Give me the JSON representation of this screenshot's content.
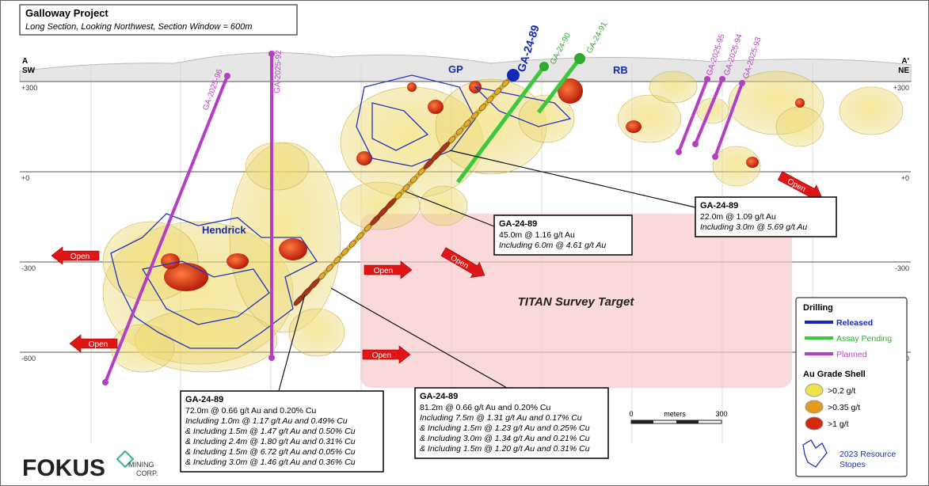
{
  "header": {
    "title": "Galloway Project",
    "subtitle": "Long Section, Looking Northwest, Section Window = 600m"
  },
  "section_ends": {
    "left": {
      "point": "A",
      "direction": "SW"
    },
    "right": {
      "point": "A'",
      "direction": "NE"
    }
  },
  "elevations": [
    "+300",
    "+0",
    "-300",
    "-600"
  ],
  "zones": [
    "GP",
    "RB",
    "Hendrick"
  ],
  "drill_holes": [
    "GA-2025-96",
    "GA-2025-92",
    "GA-24-89",
    "GA-24-90",
    "GA-24-91",
    "GA-2025-95",
    "GA-2025-94",
    "GA-2025-93"
  ],
  "open_arrows": [
    "Open",
    "Open",
    "Open",
    "Open",
    "Open",
    "Open"
  ],
  "target": "TITAN Survey Target",
  "callouts": [
    {
      "title": "GA-24-89",
      "lines": [
        "22.0m @ 1.09 g/t Au",
        "Including 3.0m @ 5.69 g/t Au"
      ]
    },
    {
      "title": "GA-24-89",
      "lines": [
        "45.0m @ 1.16 g/t Au",
        "Including 6.0m @ 4.61 g/t Au"
      ]
    },
    {
      "title": "GA-24-89",
      "lines": [
        "72.0m @ 0.66 g/t Au and 0.20% Cu",
        "Including 1.0m @ 1.17 g/t Au and 0.49% Cu",
        "& Including 1.5m @ 1.47 g/t Au and 0.50% Cu",
        "& Including 2.4m @ 1.80 g/t Au and 0.31% Cu",
        "& Including 1.5m @ 6.72 g/t Au and 0.05% Cu",
        "& Including 3.0m @ 1.46 g/t Au and 0.36% Cu"
      ]
    },
    {
      "title": "GA-24-89",
      "lines": [
        "81.2m @ 0.66 g/t Au and 0.20% Cu",
        "Including 7.5m @ 1.31 g/t Au and 0.17% Cu",
        "& Including 1.5m @ 1.23 g/t Au and 0.25% Cu",
        "& Including 3.0m @ 1.34 g/t Au and 0.21% Cu",
        "& Including 1.5m @ 1.20 g/t Au and 0.31% Cu"
      ]
    }
  ],
  "legend": {
    "drilling": {
      "heading": "Drilling",
      "items": [
        "Released",
        "Assay Pending",
        "Planned"
      ]
    },
    "grade_shell": {
      "heading": "Au Grade Shell",
      "items": [
        ">0.2 g/t",
        ">0.35 g/t",
        ">1 g/t"
      ]
    },
    "stopes": [
      "2023 Resource",
      "Stopes"
    ]
  },
  "scale": {
    "start": "0",
    "unit": "meters",
    "end": "300"
  },
  "logo": {
    "name": "FOKUS",
    "line1": "MINING",
    "line2": "CORP."
  }
}
